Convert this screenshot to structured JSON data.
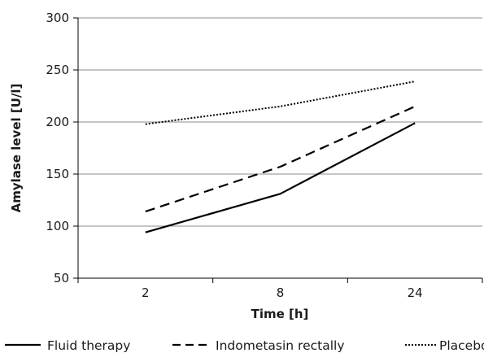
{
  "chart_data": {
    "type": "line",
    "title": "",
    "xlabel": "Time [h]",
    "ylabel": "Amylase level [U/l]",
    "categories": [
      "2",
      "8",
      "24"
    ],
    "ylim": [
      50,
      300
    ],
    "yticks": [
      50,
      100,
      150,
      200,
      250,
      300
    ],
    "grid": true,
    "legend_position": "bottom",
    "series": [
      {
        "name": "Fluid therapy",
        "values": [
          94,
          131,
          199
        ],
        "line_style": "solid",
        "color": "#000000"
      },
      {
        "name": "Indometasin rectally",
        "values": [
          114,
          157,
          215
        ],
        "line_style": "dashed",
        "color": "#000000"
      },
      {
        "name": "Placebo",
        "values": [
          198,
          215,
          239
        ],
        "line_style": "dotted",
        "color": "#000000"
      }
    ]
  }
}
